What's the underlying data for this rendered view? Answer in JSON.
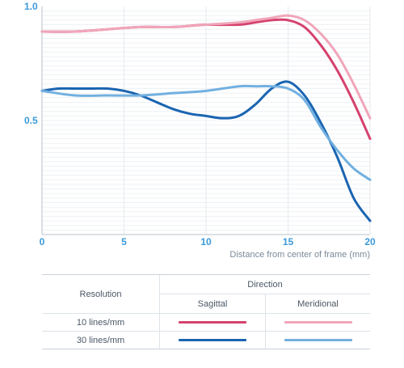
{
  "chart_data": {
    "type": "line",
    "title": "",
    "xlabel": "Distance from center of frame (mm)",
    "ylabel": "",
    "xlim": [
      0,
      20
    ],
    "ylim": [
      0,
      1.0
    ],
    "x_ticks": [
      0,
      5,
      10,
      15,
      20
    ],
    "y_ticks": [
      0.5,
      1.0
    ],
    "x_tick_labels": [
      "0",
      "5",
      "10",
      "15",
      "20"
    ],
    "y_tick_labels": [
      "0.5",
      "1.0"
    ],
    "grid": true,
    "series": [
      {
        "name": "10 lines/mm Sagittal",
        "color": "#d5426e",
        "x": [
          0,
          2,
          4,
          6,
          8,
          10,
          12,
          13,
          14,
          15,
          16,
          17,
          18,
          19,
          20
        ],
        "y": [
          0.89,
          0.89,
          0.9,
          0.91,
          0.91,
          0.92,
          0.92,
          0.93,
          0.94,
          0.94,
          0.91,
          0.83,
          0.72,
          0.58,
          0.42
        ]
      },
      {
        "name": "10 lines/mm Meridional",
        "color": "#f0a6ba",
        "x": [
          0,
          2,
          4,
          6,
          8,
          10,
          12,
          13,
          14,
          15,
          16,
          17,
          18,
          19,
          20
        ],
        "y": [
          0.89,
          0.89,
          0.9,
          0.91,
          0.91,
          0.92,
          0.93,
          0.94,
          0.95,
          0.96,
          0.94,
          0.88,
          0.79,
          0.66,
          0.51
        ]
      },
      {
        "name": "30 lines/mm Sagittal",
        "color": "#1a65b1",
        "x": [
          0,
          1,
          2,
          3,
          4,
          5,
          6,
          7,
          8,
          9,
          10,
          11,
          12,
          13,
          14,
          15,
          16,
          17,
          18,
          19,
          20
        ],
        "y": [
          0.63,
          0.64,
          0.64,
          0.64,
          0.64,
          0.63,
          0.61,
          0.58,
          0.55,
          0.53,
          0.52,
          0.51,
          0.52,
          0.57,
          0.64,
          0.67,
          0.61,
          0.49,
          0.34,
          0.16,
          0.06
        ]
      },
      {
        "name": "30 lines/mm Meridional",
        "color": "#72b0e0",
        "x": [
          0,
          2,
          4,
          6,
          8,
          10,
          12,
          13,
          14,
          15,
          16,
          17,
          18,
          19,
          20
        ],
        "y": [
          0.63,
          0.61,
          0.61,
          0.61,
          0.62,
          0.63,
          0.65,
          0.65,
          0.65,
          0.64,
          0.59,
          0.47,
          0.37,
          0.29,
          0.24
        ]
      }
    ]
  },
  "legend": {
    "resolution_header": "Resolution",
    "direction_header": "Direction",
    "sagittal_header": "Sagittal",
    "meridional_header": "Meridional",
    "rows": [
      {
        "label": "10 lines/mm",
        "sagittal_color": "#d5426e",
        "meridional_color": "#f0a6ba"
      },
      {
        "label": "30 lines/mm",
        "sagittal_color": "#1a65b1",
        "meridional_color": "#72b0e0"
      }
    ]
  }
}
